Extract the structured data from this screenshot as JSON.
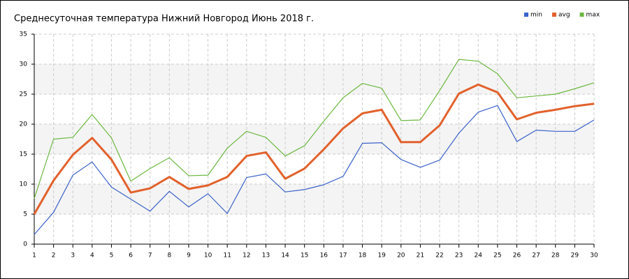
{
  "chart_data": {
    "type": "line",
    "title": "Среднесуточная температура Нижний Новгород  Июнь 2018 г.",
    "x": [
      1,
      2,
      3,
      4,
      5,
      6,
      7,
      8,
      9,
      10,
      11,
      12,
      13,
      14,
      15,
      16,
      17,
      18,
      19,
      20,
      21,
      22,
      23,
      24,
      25,
      26,
      27,
      28,
      29,
      30
    ],
    "xlim": [
      1,
      30
    ],
    "xticks": [
      1,
      2,
      3,
      4,
      5,
      6,
      7,
      8,
      9,
      10,
      11,
      12,
      13,
      14,
      15,
      16,
      17,
      18,
      19,
      20,
      21,
      22,
      23,
      24,
      25,
      26,
      27,
      28,
      29,
      30
    ],
    "ylim": [
      0,
      35
    ],
    "yticks": [
      0,
      5,
      10,
      15,
      20,
      25,
      30,
      35
    ],
    "grid": true,
    "legend": "top-right",
    "series": [
      {
        "name": "min",
        "color": "#3a62c9",
        "values": [
          1.6,
          5.3,
          11.5,
          13.7,
          9.5,
          7.5,
          5.5,
          8.8,
          6.2,
          8.4,
          5.1,
          11.1,
          11.7,
          8.7,
          9.1,
          9.9,
          11.3,
          16.8,
          16.9,
          14.1,
          12.8,
          14.0,
          18.5,
          22.0,
          23.1,
          17.1,
          19.0,
          18.8,
          18.8,
          20.7
        ]
      },
      {
        "name": "avg",
        "color": "#e2612c",
        "values": [
          5.0,
          10.6,
          14.9,
          17.7,
          14.1,
          8.6,
          9.3,
          11.2,
          9.2,
          9.8,
          11.2,
          14.7,
          15.3,
          10.9,
          12.6,
          15.8,
          19.3,
          21.8,
          22.4,
          17.0,
          17.0,
          19.8,
          25.1,
          26.6,
          25.3,
          20.8,
          21.9,
          22.4,
          23.0,
          23.4
        ]
      },
      {
        "name": "max",
        "color": "#6bb83f",
        "values": [
          7.6,
          17.5,
          17.8,
          21.6,
          17.7,
          10.5,
          12.6,
          14.4,
          11.4,
          11.5,
          16.0,
          18.8,
          17.8,
          14.7,
          16.4,
          20.5,
          24.4,
          26.8,
          26.0,
          20.6,
          20.7,
          25.6,
          30.8,
          30.5,
          28.4,
          24.4,
          24.7,
          25.0,
          25.9,
          26.9
        ]
      }
    ]
  }
}
